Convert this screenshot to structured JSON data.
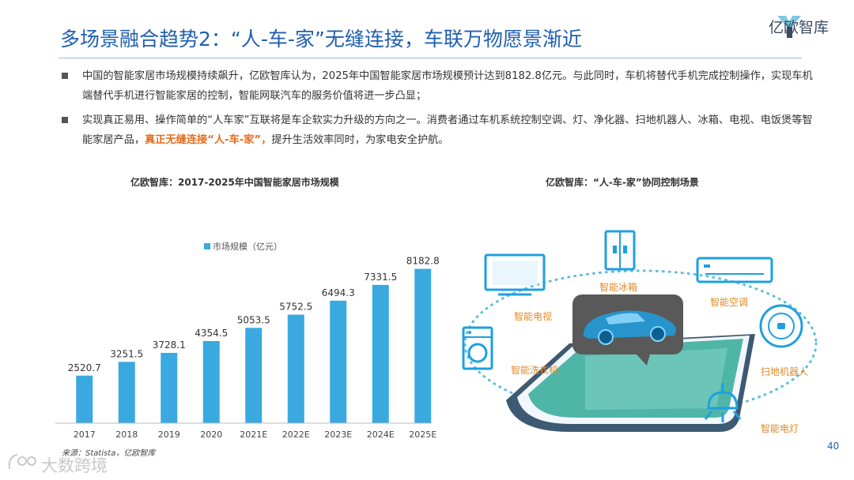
{
  "header": {
    "title": "多场景融合趋势2：“人-车-家”无缝连接，车联万物愿景渐近",
    "logo_text": "亿欧智库"
  },
  "bullets": [
    {
      "text": "中国的智能家居市场规模持续飙升，亿欧智库认为，2025年中国智能家居市场规模预计达到8182.8亿元。与此同时，车机将替代手机完成控制操作，实现车机端替代手机进行智能家居的控制，智能网联汽车的服务价值将进一步凸显；"
    },
    {
      "text_before": "实现真正易用、操作简单的“人车家”互联将是车企软实力升级的方向之一。消费者通过车机系统控制空调、灯、净化器、扫地机器人、冰箱、电视、电饭煲等智能家居产品，",
      "highlight": "真正无缝连接“人-车-家”，",
      "text_after": "提升生活效率同时，为家电安全护航。"
    }
  ],
  "left_panel": {
    "title": "亿欧智库：2017-2025年中国智能家居市场规模",
    "source": "来源：Statista，亿欧智库"
  },
  "right_panel": {
    "title": "亿欧智库：“人-车-家”协同控制场景",
    "labels": {
      "fridge": "智能冰箱",
      "ac": "智能空调",
      "tv": "智能电视",
      "washer": "智能洗衣机",
      "robot": "扫地机器人",
      "lamp": "智能电灯"
    }
  },
  "chart_data": {
    "type": "bar",
    "title": "亿欧智库：2017-2025年中国智能家居市场规模",
    "categories": [
      "2017",
      "2018",
      "2019",
      "2020",
      "2021E",
      "2022E",
      "2023E",
      "2024E",
      "2025E"
    ],
    "series": [
      {
        "name": "市场规模（亿元）",
        "values": [
          2520.7,
          3251.5,
          3728.1,
          4354.5,
          5053.5,
          5752.5,
          6494.3,
          7331.5,
          8182.8
        ],
        "labels": [
          "2520.7",
          "3251.5",
          "3728.1",
          "4354.5",
          "5053.5",
          "5752.5",
          "6494.3",
          "7331.5",
          "8182.8"
        ]
      }
    ],
    "ylim": [
      0,
      9000
    ],
    "grid": false,
    "legend": "top",
    "color": "#3aa9e0"
  },
  "footer": {
    "page_number": "40",
    "watermark": "大数跨境"
  },
  "colors": {
    "title": "#1f5fb0",
    "accent": "#e86c1a",
    "bar": "#3aa9e0",
    "label": "#e08a2a"
  }
}
